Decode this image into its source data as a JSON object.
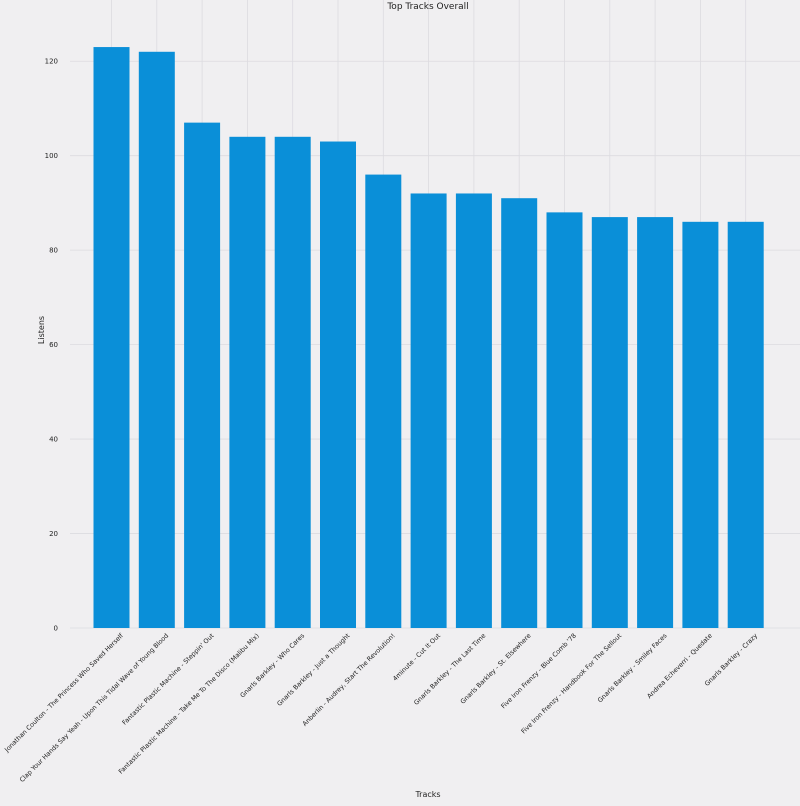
{
  "chart_data": {
    "type": "bar",
    "title": "Top Tracks Overall",
    "xlabel": "Tracks",
    "ylabel": "Listens",
    "ylim": [
      0,
      130
    ],
    "yticks": [
      0,
      20,
      40,
      60,
      80,
      100,
      120
    ],
    "grid": true,
    "bar_color": "#0a8fd8",
    "categories": [
      "Jonathan Coulton - The Princess Who Saved Herself",
      "Clap Your Hands Say Yeah - Upon This Tidal Wave of Young Blood",
      "Fantastic Plastic Machine - Steppin' Out",
      "Fantastic Plastic Machine - Take Me To The Disco (Malibu Mix)",
      "Gnarls Barkley - Who Cares",
      "Gnarls Barkley - Just a Thought",
      "Anberlin - Audrey, Start The Revolution!",
      "4minute - Cut It Out",
      "Gnarls Barkley - The Last Time",
      "Gnarls Barkley - St. Elsewhere",
      "Five Iron Frenzy - Blue Comb '78",
      "Five Iron Frenzy - Handbook For The Sellout",
      "Gnarls Barkley - Smiley Faces",
      "Andrea Echeverri - Quedate",
      "Gnarls Barkley - Crazy"
    ],
    "values": [
      123,
      122,
      107,
      104,
      104,
      103,
      96,
      92,
      92,
      91,
      88,
      87,
      87,
      86,
      86
    ]
  }
}
